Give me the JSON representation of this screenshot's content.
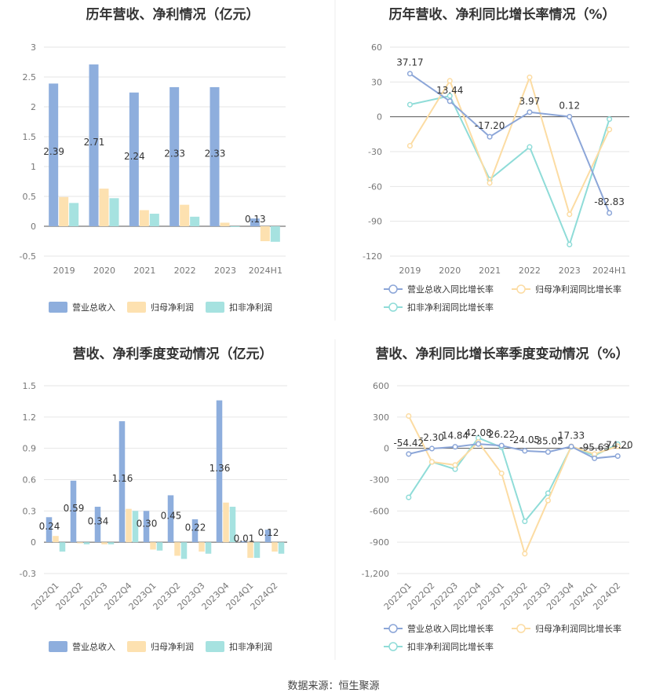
{
  "source_text": "数据来源：恒生聚源",
  "colors": {
    "revenue": "#8eaedd",
    "net_profit": "#fde1b0",
    "deducted_profit": "#a6e2e0",
    "revenue_line": "#8ca6d8",
    "net_line": "#fcdca3",
    "deducted_line": "#8fdcd8",
    "axis_text": "#777777",
    "grid": "#e6e6e6"
  },
  "chart_data": [
    {
      "id": "annual_bar",
      "type": "bar",
      "title": "历年营收、净利情况（亿元）",
      "categories": [
        "2019",
        "2020",
        "2021",
        "2022",
        "2023",
        "2024H1"
      ],
      "series": [
        {
          "name": "营业总收入",
          "values": [
            2.39,
            2.71,
            2.24,
            2.33,
            2.33,
            0.13
          ]
        },
        {
          "name": "归母净利润",
          "values": [
            0.49,
            0.63,
            0.27,
            0.36,
            0.06,
            -0.25
          ]
        },
        {
          "name": "扣非净利润",
          "values": [
            0.39,
            0.47,
            0.21,
            0.16,
            -0.01,
            -0.26
          ]
        }
      ],
      "data_labels": [
        "2.39",
        "2.71",
        "2.24",
        "2.33",
        "2.33",
        "0.13"
      ],
      "yticks": [
        "-0.5",
        "0",
        "0.5",
        "1",
        "1.5",
        "2",
        "2.5",
        "3"
      ],
      "ylim": [
        -0.5,
        3
      ],
      "grid": true,
      "legend": "bottom"
    },
    {
      "id": "annual_line",
      "type": "line",
      "title": "历年营收、净利同比增长率情况（%）",
      "categories": [
        "2019",
        "2020",
        "2021",
        "2022",
        "2023",
        "2024H1"
      ],
      "series": [
        {
          "name": "营业总收入同比增长率",
          "values": [
            37.17,
            13.44,
            -17.2,
            3.97,
            0.12,
            -82.83
          ]
        },
        {
          "name": "归母净利润同比增长率",
          "values": [
            -25,
            31,
            -57,
            34,
            -84,
            -11
          ]
        },
        {
          "name": "扣非净利润同比增长率",
          "values": [
            10.5,
            18,
            -54,
            -26,
            -110,
            -2
          ]
        }
      ],
      "data_labels": [
        "37.17",
        "13.44",
        "-17.20",
        "3.97",
        "0.12",
        "-82.83"
      ],
      "yticks": [
        "-120",
        "-90",
        "-60",
        "-30",
        "0",
        "30",
        "60"
      ],
      "ylim": [
        -120,
        60
      ],
      "grid": true,
      "legend": "bottom"
    },
    {
      "id": "quarter_bar",
      "type": "bar",
      "title": "营收、净利季度变动情况（亿元）",
      "categories": [
        "2022Q1",
        "2022Q2",
        "2022Q3",
        "2022Q4",
        "2023Q1",
        "2023Q2",
        "2023Q3",
        "2023Q4",
        "2024Q1",
        "2024Q2"
      ],
      "series": [
        {
          "name": "营业总收入",
          "values": [
            0.24,
            0.59,
            0.34,
            1.16,
            0.3,
            0.45,
            0.22,
            1.36,
            0.01,
            0.12
          ]
        },
        {
          "name": "归母净利润",
          "values": [
            0.06,
            -0.01,
            -0.02,
            0.32,
            -0.07,
            -0.13,
            -0.09,
            0.38,
            -0.15,
            -0.09
          ]
        },
        {
          "name": "扣非净利润",
          "values": [
            -0.09,
            -0.02,
            -0.02,
            0.3,
            -0.08,
            -0.16,
            -0.11,
            0.34,
            -0.15,
            -0.11
          ]
        }
      ],
      "data_labels": [
        "0.24",
        "0.59",
        "0.34",
        "1.16",
        "0.30",
        "0.45",
        "0.22",
        "1.36",
        "0.01",
        "0.12"
      ],
      "yticks": [
        "-0.3",
        "0",
        "0.3",
        "0.6",
        "0.9",
        "1.2",
        "1.5"
      ],
      "ylim": [
        -0.3,
        1.5
      ],
      "grid": true,
      "legend": "bottom"
    },
    {
      "id": "quarter_line",
      "type": "line",
      "title": "营收、净利同比增长率季度变动情况（%）",
      "categories": [
        "2022Q1",
        "2022Q2",
        "2022Q3",
        "2022Q4",
        "2023Q1",
        "2023Q2",
        "2023Q3",
        "2023Q4",
        "2024Q1",
        "2024Q2"
      ],
      "series": [
        {
          "name": "营业总收入同比增长率",
          "values": [
            -54.42,
            -2.3,
            14.84,
            42.08,
            26.22,
            -24.05,
            -35.05,
            17.33,
            -95.63,
            -74.2
          ]
        },
        {
          "name": "归母净利润同比增长率",
          "values": [
            310,
            -130,
            -160,
            60,
            -240,
            -1010,
            -500,
            20,
            -55,
            20
          ]
        },
        {
          "name": "扣非净利润同比增长率",
          "values": [
            -470,
            -130,
            -200,
            100,
            10,
            -700,
            -430,
            15,
            -70,
            40
          ]
        }
      ],
      "data_labels": [
        "-54.42",
        "-2.30",
        "14.84",
        "42.08",
        "26.22",
        "-24.05",
        "-35.05",
        "17.33",
        "-95.63",
        "-74.20"
      ],
      "yticks": [
        "-1,200",
        "-900",
        "-600",
        "-300",
        "0",
        "300",
        "600"
      ],
      "ylim": [
        -1200,
        600
      ],
      "grid": true,
      "legend": "bottom"
    }
  ]
}
